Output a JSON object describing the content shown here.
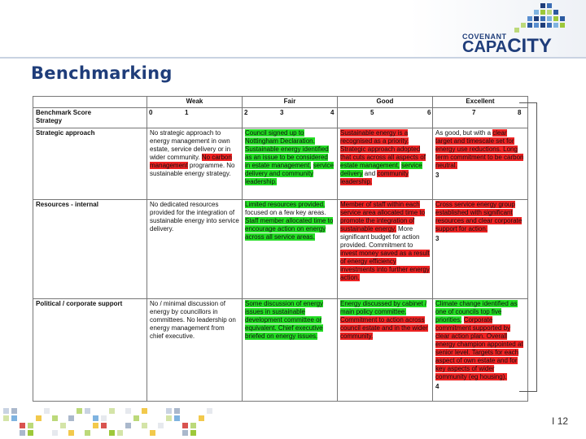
{
  "header": {
    "title": "Benchmarking",
    "logo_top": "COVENANT",
    "logo_bottom_small": "CAPA",
    "logo_bottom_big": "CITY"
  },
  "table": {
    "columns": [
      "",
      "Weak",
      "Fair",
      "Good",
      "Excellent"
    ],
    "benchmark_label": "Benchmark Score",
    "scores": [
      "0",
      "1",
      "2",
      "3",
      "4",
      "5",
      "6",
      "7",
      "8"
    ],
    "section_label": "Strategy",
    "rows": [
      {
        "label": "Strategic approach",
        "weak": [
          {
            "t": "No strategic approach to energy management in own estate, service delivery or in wider community. ",
            "c": ""
          },
          {
            "t": "No carbon management",
            "c": "r"
          },
          {
            "t": " programme. No sustainable energy strategy.",
            "c": ""
          }
        ],
        "fair": [
          {
            "t": "Council signed up to Nottingham Declaration. Sustainable energy identified as an issue to be considered in estate management,",
            "c": "g"
          },
          {
            "t": " ",
            "c": ""
          },
          {
            "t": "service delivery and community leadership.",
            "c": "g"
          }
        ],
        "good": [
          {
            "t": "Sustainable energy is a recognised as a priority. Strategic approach adopted that cuts across all aspects of",
            "c": "r"
          },
          {
            "t": " ",
            "c": ""
          },
          {
            "t": "estate management,",
            "c": "g"
          },
          {
            "t": " ",
            "c": ""
          },
          {
            "t": "service delivery",
            "c": "g"
          },
          {
            "t": " and ",
            "c": ""
          },
          {
            "t": "community leadership.",
            "c": "r"
          }
        ],
        "excellent": [
          {
            "t": "As good, but with a ",
            "c": ""
          },
          {
            "t": "clear target and timescale set for energy use reductions. Long term commitment to be carbon neutral.",
            "c": "r"
          }
        ],
        "excellent_tail": "3"
      },
      {
        "label": "Resources - internal",
        "weak": [
          {
            "t": "No dedicated resources provided for the integration of sustainable energy into service delivery.",
            "c": ""
          }
        ],
        "fair": [
          {
            "t": "Limited resources provided,",
            "c": "g"
          },
          {
            "t": " focused on a few key areas. ",
            "c": ""
          },
          {
            "t": "Staff member allocated time to encourage action on energy across all service areas.",
            "c": "g"
          }
        ],
        "good": [
          {
            "t": "Member of staff within each service area allocated time to promote the integration of sustainable energy.",
            "c": "r"
          },
          {
            "t": " More significant budget for action provided. Commitment to ",
            "c": ""
          },
          {
            "t": "invest money saved as a result of energy efficiency investments into further energy action.",
            "c": "r"
          }
        ],
        "excellent": [
          {
            "t": "Cross service energy group established with significant resources and clear corporate support for action.",
            "c": "r"
          }
        ],
        "excellent_tail": "3"
      },
      {
        "label": "Political / corporate support",
        "weak": [
          {
            "t": "No / minimal discussion of energy by councillors in committees. No leadership on energy management from chief executive.",
            "c": ""
          }
        ],
        "fair": [
          {
            "t": "Some discussion of energy issues in sustainable development committee or equivalent. Chief executive briefed on energy issues.",
            "c": "g"
          }
        ],
        "good": [
          {
            "t": "Energy discussed by cabinet / main policy committee.",
            "c": "g"
          },
          {
            "t": " ",
            "c": ""
          },
          {
            "t": "Commitment to action across council estate and in the wider community.",
            "c": "r"
          }
        ],
        "excellent": [
          {
            "t": "Climate change identified as one of councils top five priorities.",
            "c": "g"
          },
          {
            "t": " ",
            "c": ""
          },
          {
            "t": "Corporate commitment supported by clear action plan. Overall energy champion appointed at senior level. Targets for each aspect of own estate and for key aspects of wider community (eg housing).",
            "c": "r"
          }
        ],
        "excellent_tail": "4"
      }
    ]
  },
  "footer": {
    "page_number": "12",
    "separator": "I"
  },
  "colors": {
    "brand": "#1f3d7a",
    "highlight_green": "#22dd22",
    "highlight_red": "#ee2222"
  }
}
